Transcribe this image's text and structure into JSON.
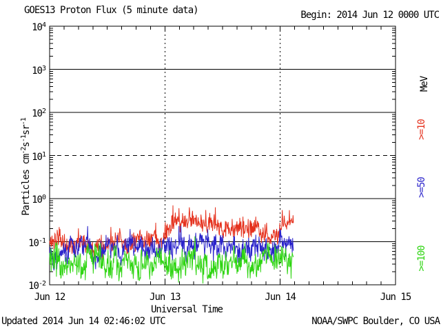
{
  "header": {
    "title": "GOES13 Proton Flux (5 minute data)",
    "begin": "Begin: 2014 Jun 12 0000 UTC"
  },
  "footer": {
    "updated": "Updated 2014 Jun 14 02:46:02 UTC",
    "source": "NOAA/SWPC Boulder, CO USA"
  },
  "chart_data": {
    "type": "line",
    "title": "GOES13 Proton Flux (5 minute data)",
    "x_axis": {
      "label": "Universal Time",
      "tick_labels": [
        "Jun 12",
        "Jun 13",
        "Jun 14",
        "Jun 15"
      ],
      "range_days": [
        0,
        3
      ],
      "minor_tick_hours": 3,
      "dashed_day_lines_at_days": [
        1,
        2
      ]
    },
    "y_axis": {
      "label_parts": [
        {
          "text": "Particles cm"
        },
        {
          "text": "-2",
          "sup": true
        },
        {
          "text": "s"
        },
        {
          "text": "-1",
          "sup": true
        },
        {
          "text": "sr"
        },
        {
          "text": "-1",
          "sup": true
        }
      ],
      "scale": "log10",
      "exponent_max": 4,
      "exponent_min": -2,
      "solid_gridline_exponents": [
        3,
        2,
        0,
        -1
      ],
      "dashed_gridline_exponents": [
        1
      ]
    },
    "legend": [
      {
        "text": "MeV",
        "color": "#000000"
      },
      {
        "text": ">=10",
        "color": "#e5311d"
      },
      {
        "text": ">=50",
        "color": "#2a23cb"
      },
      {
        "text": ">=100",
        "color": "#2fd512"
      }
    ],
    "time": {
      "begin": "2014 Jun 12 0000 UTC",
      "data_end_days": 2.115,
      "step_minutes": 5
    },
    "series": [
      {
        "name": ">=10 MeV",
        "color": "#e5311d",
        "seed": 11,
        "baseline_log10_flux": [
          [
            0,
            -1.02
          ],
          [
            0.55,
            -1.0
          ],
          [
            0.95,
            -0.98
          ],
          [
            1.03,
            -0.62
          ],
          [
            1.12,
            -0.5
          ],
          [
            1.3,
            -0.54
          ],
          [
            1.5,
            -0.65
          ],
          [
            1.75,
            -0.72
          ],
          [
            1.95,
            -0.8
          ],
          [
            2.02,
            -0.68
          ],
          [
            2.08,
            -0.56
          ],
          [
            2.115,
            -0.52
          ]
        ],
        "noise_log10": 0.26,
        "spike_prob": 0.05,
        "spike_log10": 0.28
      },
      {
        "name": ">=50 MeV",
        "color": "#2a23cb",
        "seed": 22,
        "baseline_log10_flux": [
          [
            0,
            -1.22
          ],
          [
            0.5,
            -1.18
          ],
          [
            1.0,
            -1.16
          ],
          [
            1.3,
            -1.1
          ],
          [
            1.6,
            -1.16
          ],
          [
            1.9,
            -1.2
          ],
          [
            2.05,
            -1.1
          ],
          [
            2.115,
            -1.05
          ]
        ],
        "noise_log10": 0.3,
        "spike_prob": 0.04,
        "spike_log10": 0.25
      },
      {
        "name": ">=100 MeV",
        "color": "#2fd512",
        "seed": 33,
        "baseline_log10_flux": [
          [
            0,
            -1.55
          ],
          [
            0.7,
            -1.52
          ],
          [
            1.2,
            -1.48
          ],
          [
            1.7,
            -1.5
          ],
          [
            2.115,
            -1.45
          ]
        ],
        "noise_log10": 0.38,
        "spike_prob": 0.02,
        "spike_log10": 0.2
      }
    ],
    "flux_floor_log10": -1.97,
    "axis_color": "#000000",
    "background_color": "#ffffff"
  }
}
